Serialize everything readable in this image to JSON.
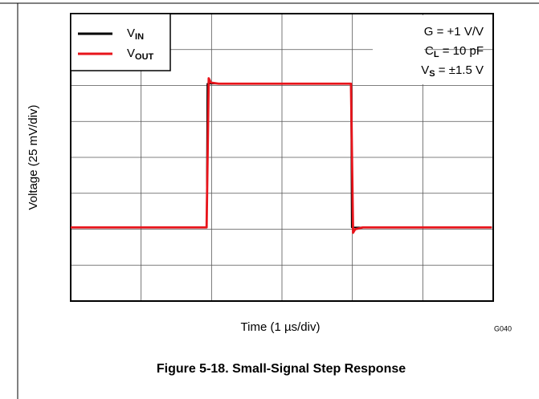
{
  "chart_data": {
    "type": "line",
    "caption": "Figure 5-18. Small-Signal Step Response",
    "xlabel": "Time (1 µs/div)",
    "ylabel": "Voltage (25 mV/div)",
    "code": "G040",
    "xlim": [
      0,
      6
    ],
    "xticks": [
      0,
      1,
      2,
      3,
      4,
      5,
      6
    ],
    "ylim": [
      0,
      8
    ],
    "yticks": [
      0,
      1,
      2,
      3,
      4,
      5,
      6,
      7,
      8
    ],
    "grid": true,
    "legend": "top-left",
    "annotations": [
      {
        "text": "G = +1 V/V"
      },
      {
        "text": "C",
        "sub": "L",
        "rest": " = 10 pF"
      },
      {
        "text": "V",
        "sub": "S",
        "rest": " = ±1.5 V"
      }
    ],
    "series": [
      {
        "name": "V",
        "sub": "IN",
        "color": "#000000",
        "x": [
          0,
          1.93,
          1.94,
          3.98,
          3.99,
          5.98
        ],
        "values": [
          2.05,
          2.05,
          6.05,
          6.05,
          2.05,
          2.05
        ]
      },
      {
        "name": "V",
        "sub": "OUT",
        "color": "#e8141b",
        "x": [
          0,
          1.93,
          1.96,
          1.99,
          2.1,
          3.98,
          4.01,
          4.04,
          4.15,
          5.98
        ],
        "values": [
          2.05,
          2.05,
          6.2,
          6.08,
          6.05,
          6.05,
          1.9,
          2.0,
          2.05,
          2.05
        ]
      }
    ]
  }
}
